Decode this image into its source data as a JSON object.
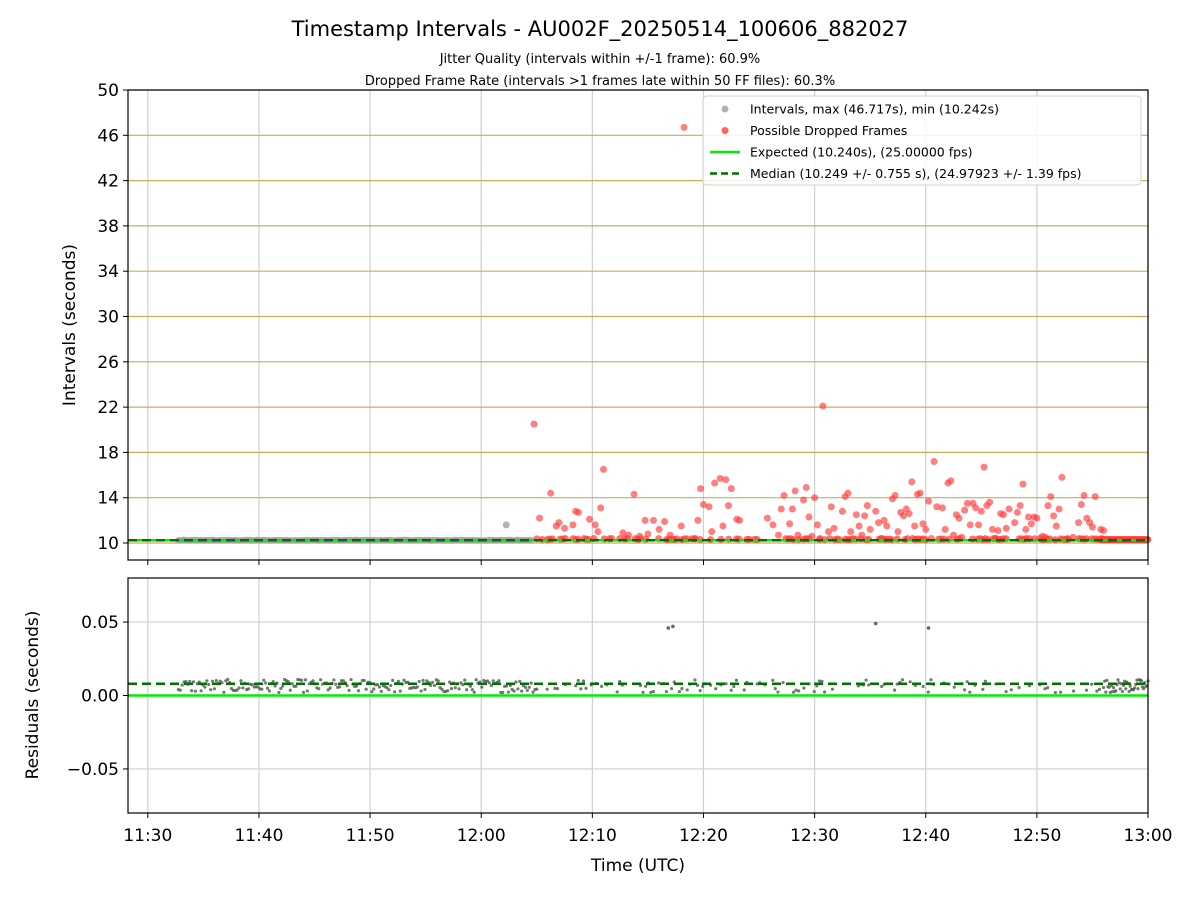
{
  "chart_data": [
    {
      "type": "scatter",
      "title": "Timestamp Intervals - AU002F_20250514_100606_882027",
      "subtitle_lines": [
        "Jitter Quality (intervals within +/-1 frame): 60.9%",
        "Dropped Frame Rate (intervals >1 frames late within 50 FF files): 60.3%"
      ],
      "xlabel": "",
      "ylabel": "Intervals (seconds)",
      "x_is_time": true,
      "xlim": [
        "11:28:13",
        "13:00:00"
      ],
      "ylim": [
        8.5,
        50
      ],
      "yticks": [
        10,
        14,
        18,
        22,
        26,
        30,
        34,
        38,
        42,
        46,
        50
      ],
      "grid": {
        "vertical": true,
        "horizontal_color": "#c8ad5a"
      },
      "legend_position": "top-right",
      "legend": [
        {
          "label": "Intervals, max (46.717s), min (10.242s)",
          "kind": "point",
          "color": "#a0a0a0"
        },
        {
          "label": "Possible Dropped Frames",
          "kind": "point",
          "color": "#ff3b3b"
        },
        {
          "label": "Expected (10.240s), (25.00000 fps)",
          "kind": "line",
          "color": "#00ee00",
          "dash": false
        },
        {
          "label": "Median (10.249 +/- 0.755 s), (24.97923 +/- 1.39 fps)",
          "kind": "line",
          "color": "#007000",
          "dash": true
        }
      ],
      "expected_y": 10.24,
      "median_y": 10.249,
      "series": [
        {
          "name": "Intervals, max (46.717s), min (10.242s)",
          "color": "#a0a0a0",
          "dense_band": {
            "x_start": "11:32:45",
            "x_end": "12:04:30",
            "y": 10.25
          },
          "points": [
            [
              "12:02:15",
              11.6
            ]
          ]
        },
        {
          "name": "Possible Dropped Frames",
          "color": "#ff3b3b",
          "dense_band": {
            "x_start": "12:55:45",
            "x_end": "13:00:00",
            "y": 10.3
          },
          "points": [
            [
              "12:04:45",
              20.5
            ],
            [
              "12:05:15",
              12.2
            ],
            [
              "12:06:15",
              14.4
            ],
            [
              "12:06:45",
              11.5
            ],
            [
              "12:07:00",
              11.8
            ],
            [
              "12:07:30",
              11.3
            ],
            [
              "12:08:15",
              11.6
            ],
            [
              "12:08:30",
              12.8
            ],
            [
              "12:08:45",
              12.7
            ],
            [
              "12:09:15",
              10.4
            ],
            [
              "12:09:45",
              12.1
            ],
            [
              "12:10:15",
              11.6
            ],
            [
              "12:10:30",
              11.0
            ],
            [
              "12:10:45",
              13.1
            ],
            [
              "12:11:00",
              16.5
            ],
            [
              "12:11:45",
              10.4
            ],
            [
              "12:12:45",
              10.9
            ],
            [
              "12:13:15",
              10.7
            ],
            [
              "12:13:45",
              14.3
            ],
            [
              "12:14:15",
              10.6
            ],
            [
              "12:14:45",
              12.0
            ],
            [
              "12:15:00",
              10.8
            ],
            [
              "12:15:30",
              12.0
            ],
            [
              "12:16:00",
              11.2
            ],
            [
              "12:16:30",
              11.9
            ],
            [
              "12:17:00",
              10.7
            ],
            [
              "12:18:00",
              11.5
            ],
            [
              "12:18:15",
              46.7
            ],
            [
              "12:19:15",
              10.4
            ],
            [
              "12:19:30",
              12.0
            ],
            [
              "12:19:45",
              14.8
            ],
            [
              "12:20:00",
              13.4
            ],
            [
              "12:20:30",
              13.2
            ],
            [
              "12:20:45",
              11.0
            ],
            [
              "12:21:00",
              15.3
            ],
            [
              "12:21:30",
              15.7
            ],
            [
              "12:21:45",
              11.5
            ],
            [
              "12:22:00",
              15.6
            ],
            [
              "12:22:15",
              13.3
            ],
            [
              "12:22:30",
              14.8
            ],
            [
              "12:23:00",
              12.1
            ],
            [
              "12:23:15",
              12.0
            ],
            [
              "12:25:45",
              12.2
            ],
            [
              "12:26:15",
              11.6
            ],
            [
              "12:26:45",
              10.7
            ],
            [
              "12:27:00",
              13.0
            ],
            [
              "12:27:15",
              14.2
            ],
            [
              "12:27:45",
              11.7
            ],
            [
              "12:28:00",
              13.0
            ],
            [
              "12:28:15",
              14.6
            ],
            [
              "12:28:30",
              10.7
            ],
            [
              "12:29:00",
              13.8
            ],
            [
              "12:29:15",
              14.9
            ],
            [
              "12:29:30",
              12.3
            ],
            [
              "12:29:45",
              10.6
            ],
            [
              "12:30:00",
              14.0
            ],
            [
              "12:30:15",
              11.6
            ],
            [
              "12:30:30",
              10.4
            ],
            [
              "12:30:45",
              22.1
            ],
            [
              "12:31:15",
              11.0
            ],
            [
              "12:31:30",
              13.2
            ],
            [
              "12:31:45",
              11.3
            ],
            [
              "12:32:15",
              10.3
            ],
            [
              "12:32:30",
              12.8
            ],
            [
              "12:32:45",
              14.1
            ],
            [
              "12:33:00",
              14.4
            ],
            [
              "12:33:15",
              11.0
            ],
            [
              "12:33:45",
              12.5
            ],
            [
              "12:34:00",
              11.5
            ],
            [
              "12:34:15",
              10.7
            ],
            [
              "12:34:30",
              12.4
            ],
            [
              "12:34:45",
              13.3
            ],
            [
              "12:35:00",
              11.2
            ],
            [
              "12:35:30",
              12.8
            ],
            [
              "12:35:45",
              11.8
            ],
            [
              "12:36:00",
              10.4
            ],
            [
              "12:36:15",
              12.0
            ],
            [
              "12:36:30",
              11.5
            ],
            [
              "12:37:00",
              13.9
            ],
            [
              "12:37:15",
              14.2
            ],
            [
              "12:37:30",
              11.0
            ],
            [
              "12:37:45",
              12.7
            ],
            [
              "12:38:00",
              12.4
            ],
            [
              "12:38:15",
              13.0
            ],
            [
              "12:38:30",
              12.6
            ],
            [
              "12:38:45",
              15.4
            ],
            [
              "12:39:00",
              11.5
            ],
            [
              "12:39:15",
              14.3
            ],
            [
              "12:39:30",
              14.4
            ],
            [
              "12:39:45",
              11.7
            ],
            [
              "12:40:00",
              11.2
            ],
            [
              "12:40:15",
              13.7
            ],
            [
              "12:40:30",
              10.4
            ],
            [
              "12:40:45",
              17.2
            ],
            [
              "12:41:00",
              13.2
            ],
            [
              "12:41:30",
              13.1
            ],
            [
              "12:41:45",
              11.2
            ],
            [
              "12:42:00",
              15.3
            ],
            [
              "12:42:15",
              15.5
            ],
            [
              "12:42:30",
              10.7
            ],
            [
              "12:42:45",
              12.5
            ],
            [
              "12:43:00",
              12.2
            ],
            [
              "12:43:15",
              10.5
            ],
            [
              "12:43:30",
              12.9
            ],
            [
              "12:43:45",
              13.5
            ],
            [
              "12:44:00",
              11.6
            ],
            [
              "12:44:15",
              13.5
            ],
            [
              "12:44:30",
              13.1
            ],
            [
              "12:44:45",
              11.6
            ],
            [
              "12:45:00",
              12.8
            ],
            [
              "12:45:15",
              16.7
            ],
            [
              "12:45:30",
              13.3
            ],
            [
              "12:45:45",
              13.6
            ],
            [
              "12:46:00",
              11.2
            ],
            [
              "12:46:15",
              10.4
            ],
            [
              "12:46:30",
              11.1
            ],
            [
              "12:46:45",
              12.6
            ],
            [
              "12:47:00",
              12.5
            ],
            [
              "12:47:15",
              11.3
            ],
            [
              "12:47:30",
              13.0
            ],
            [
              "12:48:00",
              11.8
            ],
            [
              "12:48:15",
              12.7
            ],
            [
              "12:48:30",
              13.3
            ],
            [
              "12:48:45",
              15.2
            ],
            [
              "12:49:00",
              11.2
            ],
            [
              "12:49:15",
              12.3
            ],
            [
              "12:49:30",
              11.7
            ],
            [
              "12:49:45",
              12.3
            ],
            [
              "12:50:00",
              12.2
            ],
            [
              "12:50:30",
              10.6
            ],
            [
              "12:50:45",
              10.5
            ],
            [
              "12:51:00",
              13.3
            ],
            [
              "12:51:15",
              14.1
            ],
            [
              "12:51:30",
              12.4
            ],
            [
              "12:51:45",
              11.5
            ],
            [
              "12:52:00",
              13.0
            ],
            [
              "12:52:15",
              15.8
            ],
            [
              "12:52:45",
              10.4
            ],
            [
              "12:53:15",
              10.5
            ],
            [
              "12:53:45",
              11.8
            ],
            [
              "12:54:00",
              13.4
            ],
            [
              "12:54:15",
              14.2
            ],
            [
              "12:54:30",
              12.2
            ],
            [
              "12:54:45",
              11.8
            ],
            [
              "12:55:00",
              11.4
            ],
            [
              "12:55:15",
              14.1
            ],
            [
              "12:55:45",
              11.2
            ],
            [
              "12:56:00",
              11.1
            ]
          ]
        }
      ]
    },
    {
      "type": "scatter",
      "title": "",
      "xlabel": "Time (UTC)",
      "ylabel": "Residuals (seconds)",
      "x_is_time": true,
      "xlim": [
        "11:28:13",
        "13:00:00"
      ],
      "xticks": [
        "11:30",
        "11:40",
        "11:50",
        "12:00",
        "12:10",
        "12:20",
        "12:30",
        "12:40",
        "12:50",
        "13:00"
      ],
      "ylim": [
        -0.08,
        0.08
      ],
      "yticks": [
        -0.05,
        0.0,
        0.05
      ],
      "ytick_labels": [
        "−0.05",
        "0.00",
        "0.05"
      ],
      "grid": {
        "vertical": true,
        "horizontal": true
      },
      "expected_y": 0.0,
      "median_y": 0.008,
      "series": [
        {
          "color": "#555555",
          "bulk_range": {
            "x_start": "11:32:45",
            "x_end": "13:00:00",
            "y_min": 0.002,
            "y_max": 0.011
          },
          "outliers": [
            [
              "12:16:50",
              0.046
            ],
            [
              "12:17:15",
              0.047
            ],
            [
              "12:35:30",
              0.049
            ],
            [
              "12:40:15",
              0.046
            ]
          ]
        }
      ]
    }
  ]
}
